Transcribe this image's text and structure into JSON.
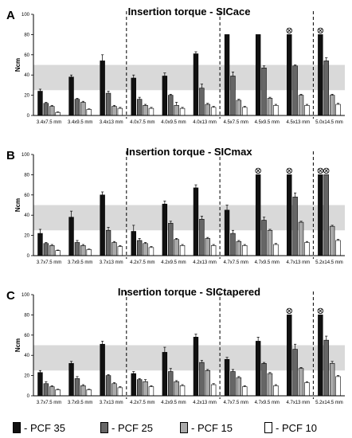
{
  "colors": {
    "series": [
      "#111111",
      "#666666",
      "#a9a9a9",
      "#ffffff"
    ],
    "band": "#d9d9d9"
  },
  "chart_data": [
    {
      "type": "bar",
      "panel": "A",
      "title": "Insertion torque - SICace",
      "ylabel": "Ncm",
      "ylim": [
        0,
        100
      ],
      "yticks": [
        0,
        20,
        40,
        60,
        80,
        100
      ],
      "band": [
        25,
        50
      ],
      "categories": [
        "3.4x7.5 mm",
        "3.4x9.5 mm",
        "3.4x13 mm",
        "4.0x7.5 mm",
        "4.0x9.5 mm",
        "4.0x13 mm",
        "4.5x7.5 mm",
        "4.5x9.5 mm",
        "4.5x13 mm",
        "5.0x14.5 mm"
      ],
      "group_breaks_after": [
        2,
        5,
        8
      ],
      "series": [
        {
          "name": "PCF 35",
          "values": [
            24,
            38,
            54,
            37,
            39,
            61,
            80,
            80,
            80,
            80
          ],
          "errors": [
            2,
            2,
            6,
            3,
            3,
            2,
            0,
            0,
            0,
            0
          ]
        },
        {
          "name": "PCF 25",
          "values": [
            12,
            16,
            22,
            16,
            20,
            27,
            39,
            47,
            49,
            54
          ],
          "errors": [
            1,
            1,
            2,
            2,
            1,
            4,
            4,
            2,
            1,
            3
          ]
        },
        {
          "name": "PCF 15",
          "values": [
            9,
            13,
            9,
            10,
            10,
            11,
            15,
            17,
            20,
            20
          ],
          "errors": [
            1,
            1,
            1,
            1,
            3,
            1,
            1,
            1,
            1,
            1
          ]
        },
        {
          "name": "PCF 10",
          "values": [
            3,
            6,
            7,
            7,
            7,
            8,
            8,
            10,
            10,
            11
          ],
          "errors": [
            0.5,
            0.5,
            1,
            1,
            1,
            1,
            1,
            1,
            1,
            1
          ]
        }
      ],
      "max_markers": [
        [
          8,
          0
        ],
        [
          9,
          0
        ]
      ]
    },
    {
      "type": "bar",
      "panel": "B",
      "title": "Insertion torque - SICmax",
      "ylabel": "Ncm",
      "ylim": [
        0,
        100
      ],
      "yticks": [
        0,
        20,
        40,
        60,
        80,
        100
      ],
      "band": [
        25,
        50
      ],
      "categories": [
        "3.7x7.5 mm",
        "3.7x9.5 mm",
        "3.7x13 mm",
        "4.2x7.5 mm",
        "4.2x9.5 mm",
        "4.2x13 mm",
        "4.7x7.5 mm",
        "4.7x9.5 mm",
        "4.7x13 mm",
        "5.2x14.5 mm"
      ],
      "group_breaks_after": [
        2,
        5,
        8
      ],
      "series": [
        {
          "name": "PCF 35",
          "values": [
            22,
            38,
            60,
            24,
            51,
            67,
            45,
            80,
            80,
            80
          ],
          "errors": [
            4,
            6,
            3,
            6,
            3,
            3,
            5,
            0,
            0,
            0
          ]
        },
        {
          "name": "PCF 25",
          "values": [
            12,
            13,
            25,
            15,
            32,
            36,
            22,
            35,
            58,
            80
          ],
          "errors": [
            1,
            2,
            3,
            2,
            2,
            3,
            3,
            3,
            4,
            0
          ]
        },
        {
          "name": "PCF 15",
          "values": [
            10,
            10,
            13,
            12,
            16,
            17,
            14,
            25,
            33,
            29
          ],
          "errors": [
            1,
            1,
            1,
            1,
            1,
            1,
            1,
            1,
            1,
            1
          ]
        },
        {
          "name": "PCF 10",
          "values": [
            5,
            6,
            9,
            8,
            10,
            10,
            10,
            11,
            13,
            15
          ],
          "errors": [
            0.5,
            0.5,
            1,
            1,
            1,
            1,
            1,
            1,
            1,
            1
          ]
        }
      ],
      "max_markers": [
        [
          7,
          0
        ],
        [
          8,
          0
        ],
        [
          9,
          0
        ],
        [
          9,
          1
        ]
      ]
    },
    {
      "type": "bar",
      "panel": "C",
      "title": "Insertion torque - SICtapered",
      "ylabel": "Ncm",
      "ylim": [
        0,
        100
      ],
      "yticks": [
        0,
        20,
        40,
        60,
        80,
        100
      ],
      "band": [
        25,
        50
      ],
      "categories": [
        "3.7x7.5 mm",
        "3.7x9.5 mm",
        "3.7x13 mm",
        "4.2x7.5 mm",
        "4.2x9.5 mm",
        "4.2x13 mm",
        "4.7x7.5 mm",
        "4.7x9.5 mm",
        "4.7x13 mm",
        "5.2x14.5 mm"
      ],
      "group_breaks_after": [
        2,
        5,
        8
      ],
      "series": [
        {
          "name": "PCF 35",
          "values": [
            23,
            32,
            51,
            22,
            43,
            58,
            36,
            54,
            80,
            80
          ],
          "errors": [
            2,
            2,
            3,
            2,
            5,
            3,
            2,
            4,
            0,
            0
          ]
        },
        {
          "name": "PCF 25",
          "values": [
            12,
            17,
            20,
            16,
            24,
            33,
            24,
            32,
            46,
            55
          ],
          "errors": [
            2,
            2,
            1,
            1,
            3,
            2,
            2,
            1,
            5,
            4
          ]
        },
        {
          "name": "PCF 15",
          "values": [
            9,
            10,
            12,
            14,
            14,
            25,
            18,
            22,
            27,
            32
          ],
          "errors": [
            1,
            1,
            1,
            2,
            1,
            1,
            1,
            1,
            1,
            2
          ]
        },
        {
          "name": "PCF 10",
          "values": [
            6,
            6,
            8,
            9,
            10,
            11,
            9,
            10,
            13,
            19
          ],
          "errors": [
            0.5,
            0.5,
            1,
            1,
            1,
            1,
            1,
            1,
            1,
            1
          ]
        }
      ],
      "max_markers": [
        [
          8,
          0
        ],
        [
          9,
          0
        ]
      ]
    }
  ],
  "legend": [
    {
      "label": "- PCF 35"
    },
    {
      "label": "- PCF 25"
    },
    {
      "label": "- PCF 15"
    },
    {
      "label": "- PCF 10"
    }
  ]
}
